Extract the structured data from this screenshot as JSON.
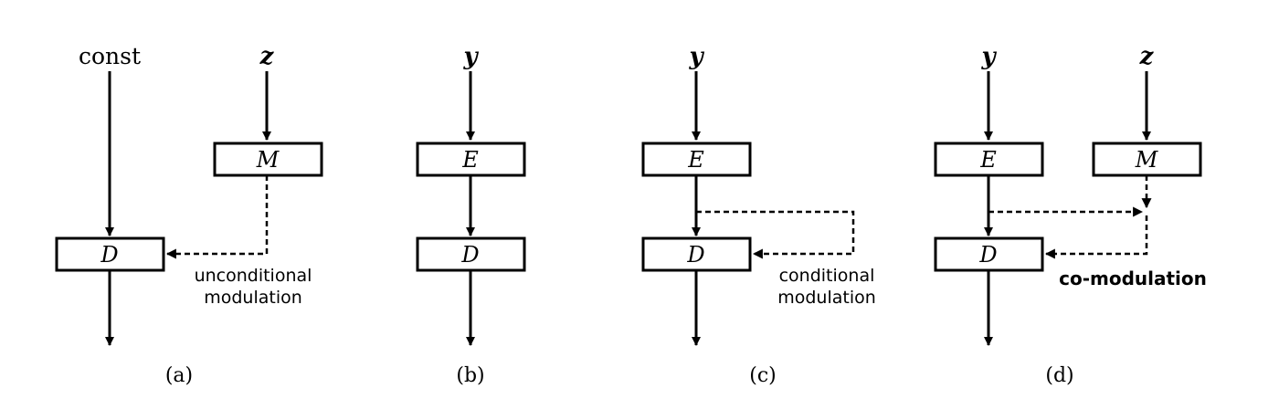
{
  "panels": {
    "a": {
      "caption": "(a)",
      "input_left": "const",
      "input_right": "z",
      "mapping_block": "M",
      "decoder_block": "D",
      "modulation_label_line1": "unconditional",
      "modulation_label_line2": "modulation"
    },
    "b": {
      "caption": "(b)",
      "input": "y",
      "encoder_block": "E",
      "decoder_block": "D"
    },
    "c": {
      "caption": "(c)",
      "input": "y",
      "encoder_block": "E",
      "decoder_block": "D",
      "modulation_label_line1": "conditional",
      "modulation_label_line2": "modulation"
    },
    "d": {
      "caption": "(d)",
      "input_left": "y",
      "input_right": "z",
      "encoder_block": "E",
      "mapping_block": "M",
      "decoder_block": "D",
      "modulation_label": "co-modulation"
    }
  },
  "colors": {
    "stroke": "#000000",
    "background": "#ffffff"
  }
}
